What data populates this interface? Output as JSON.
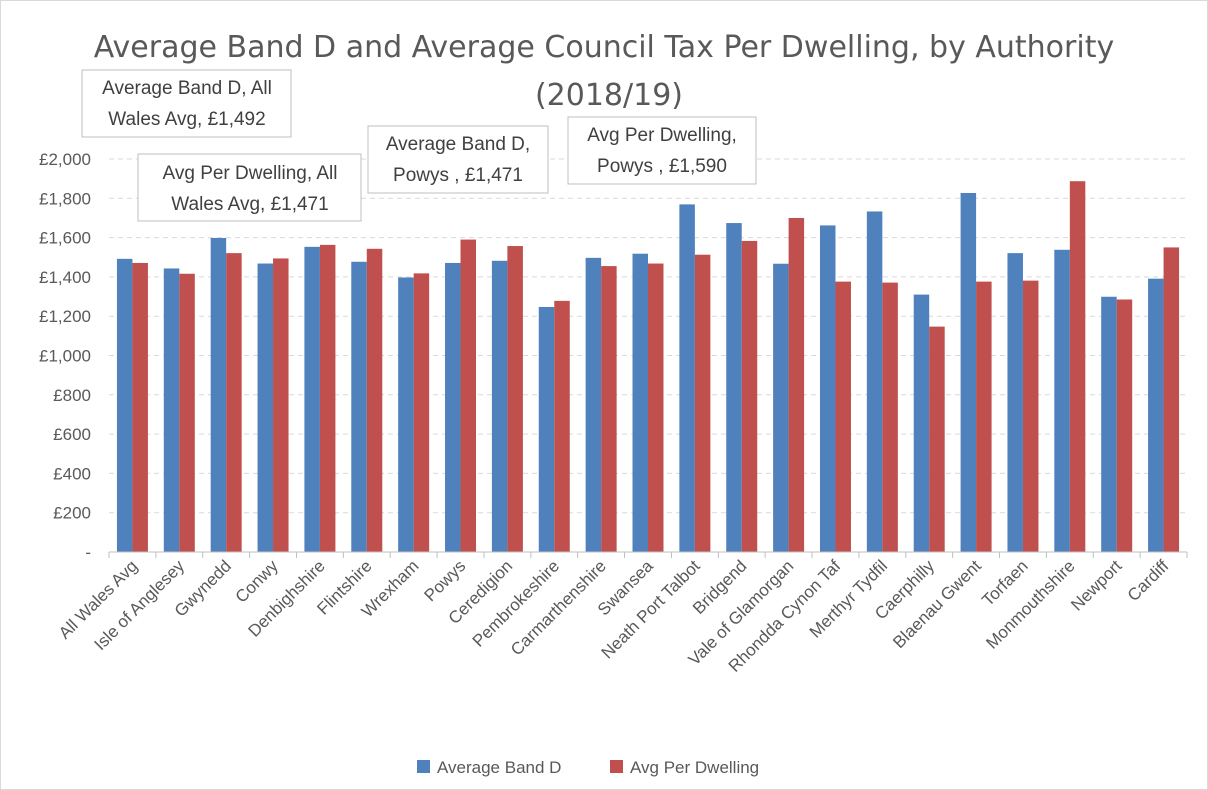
{
  "chart_data": {
    "type": "bar",
    "title_lines": [
      "Average Band D and Average Council Tax Per Dwelling, by Authority",
      "(2018/19)"
    ],
    "xlabel": "",
    "ylabel": "",
    "ylim": [
      0,
      2000
    ],
    "yticks": [
      0,
      200,
      400,
      600,
      800,
      1000,
      1200,
      1400,
      1600,
      1800,
      2000
    ],
    "ytick_labels": [
      "-",
      "£200",
      "£400",
      "£600",
      "£800",
      "£1,000",
      "£1,200",
      "£1,400",
      "£1,600",
      "£1,800",
      "£2,000"
    ],
    "grid": true,
    "legend_position": "bottom",
    "categories": [
      "All Wales Avg",
      "Isle of Anglesey",
      "Gwynedd",
      "Conwy",
      "Denbighshire",
      "Flintshire",
      "Wrexham",
      "Powys",
      "Ceredigion",
      "Pembrokeshire",
      "Carmarthenshire",
      "Swansea",
      "Neath Port Talbot",
      "Bridgend",
      "Vale of Glamorgan",
      "Rhondda Cynon Taf",
      "Merthyr Tydfil",
      "Caerphilly",
      "Blaenau Gwent",
      "Torfaen",
      "Monmouthshire",
      "Newport",
      "Cardiff"
    ],
    "series": [
      {
        "name": "Average Band D",
        "color": "#4f81bd",
        "values": [
          1492,
          1443,
          1598,
          1468,
          1553,
          1477,
          1397,
          1471,
          1482,
          1247,
          1497,
          1518,
          1769,
          1674,
          1467,
          1662,
          1733,
          1310,
          1827,
          1521,
          1538,
          1299,
          1391
        ]
      },
      {
        "name": "Avg Per Dwelling",
        "color": "#c0504d",
        "values": [
          1471,
          1416,
          1521,
          1494,
          1563,
          1543,
          1418,
          1590,
          1557,
          1278,
          1455,
          1468,
          1513,
          1583,
          1700,
          1376,
          1371,
          1147,
          1376,
          1381,
          1887,
          1285,
          1550
        ]
      }
    ],
    "annotations": [
      {
        "id": "anno-band-d-all-wales",
        "lines": [
          "Average Band D, All",
          "Wales Avg, £1,492"
        ]
      },
      {
        "id": "anno-dwelling-all-wales",
        "lines": [
          "Avg Per Dwelling, All",
          "Wales Avg, £1,471"
        ]
      },
      {
        "id": "anno-band-d-powys",
        "lines": [
          "Average Band D,",
          "Powys , £1,471"
        ]
      },
      {
        "id": "anno-dwelling-powys",
        "lines": [
          "Avg Per Dwelling,",
          "Powys , £1,590"
        ]
      }
    ]
  }
}
